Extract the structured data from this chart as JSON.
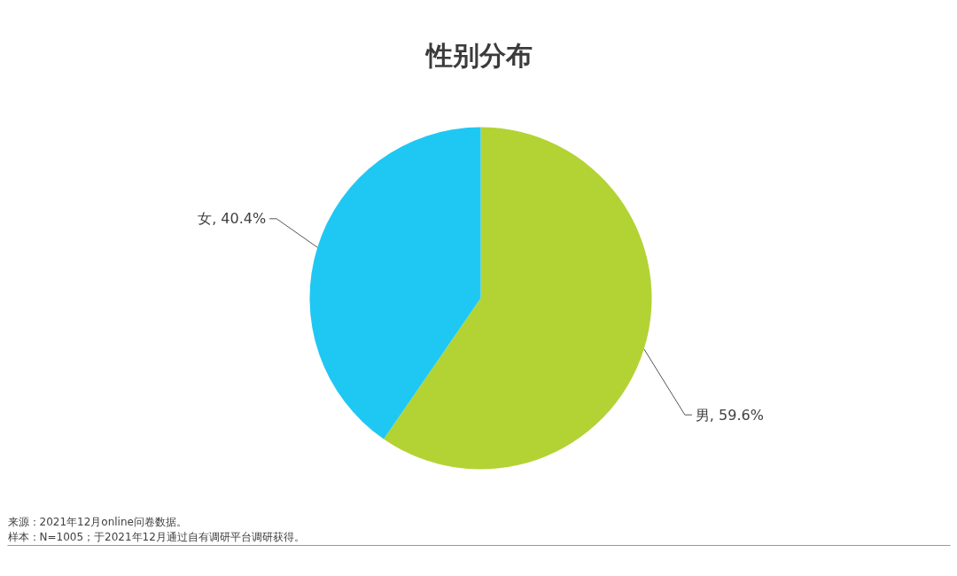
{
  "chart_data": {
    "type": "pie",
    "title": "性别分布",
    "categories": [
      "男",
      "女"
    ],
    "values": [
      59.6,
      40.4
    ],
    "colors": [
      "#b3d334",
      "#1fc8f2"
    ],
    "value_labels": [
      "59.6%",
      "40.4%"
    ],
    "annotations": [
      "来源：2021年12月online问卷数据。",
      "样本：N=1005；于2021年12月通过自有调研平台调研获得。"
    ]
  }
}
